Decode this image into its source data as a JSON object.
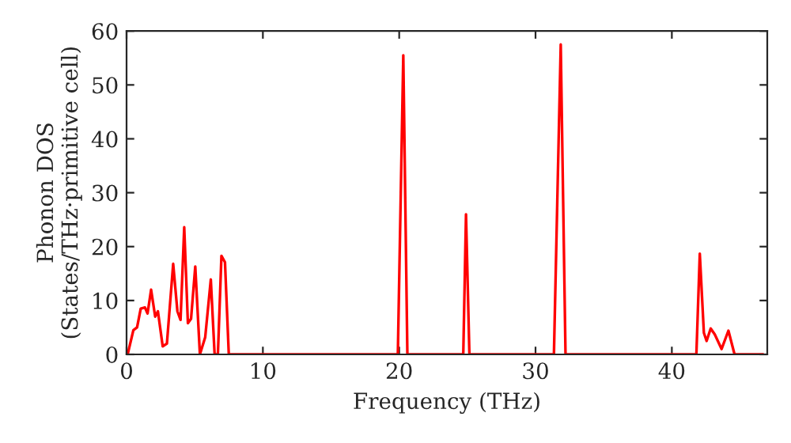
{
  "chart_data": {
    "type": "line",
    "xlabel": "Frequency (THz)",
    "ylabel": "Phonon DOS\n(States/THz·primitive cell)",
    "xlim": [
      0,
      47
    ],
    "ylim": [
      0,
      60
    ],
    "xticks": [
      0,
      10,
      20,
      30,
      40
    ],
    "yticks": [
      0,
      10,
      20,
      30,
      40,
      50,
      60
    ],
    "grid": false,
    "legend": false,
    "series": [
      {
        "color": "#ff0000",
        "x": [
          0.08,
          0.5,
          0.77,
          1.04,
          1.35,
          1.54,
          1.8,
          2.1,
          2.3,
          2.65,
          2.96,
          3.42,
          3.73,
          3.96,
          4.23,
          4.5,
          4.73,
          5.04,
          5.38,
          5.77,
          6.18,
          6.46,
          6.7,
          6.96,
          7.22,
          7.5,
          19.9,
          20.3,
          20.6,
          24.7,
          24.9,
          25.15,
          31.35,
          31.85,
          32.2,
          41.8,
          42.05,
          42.35,
          42.55,
          42.85,
          43.15,
          43.65,
          44.15,
          44.6,
          46.7
        ],
        "values": [
          0,
          4.5,
          5,
          8.5,
          8.7,
          7.6,
          12,
          7,
          8,
          1.5,
          2,
          16.8,
          8,
          6.4,
          23.6,
          5.8,
          6.6,
          16.3,
          0,
          3.2,
          13.9,
          0,
          0,
          18.3,
          17.1,
          0,
          0,
          55.5,
          0,
          0,
          26,
          0,
          0,
          57.5,
          0,
          0,
          18.7,
          4,
          2.5,
          4.8,
          3.7,
          1,
          4.4,
          0,
          0
        ]
      }
    ]
  }
}
